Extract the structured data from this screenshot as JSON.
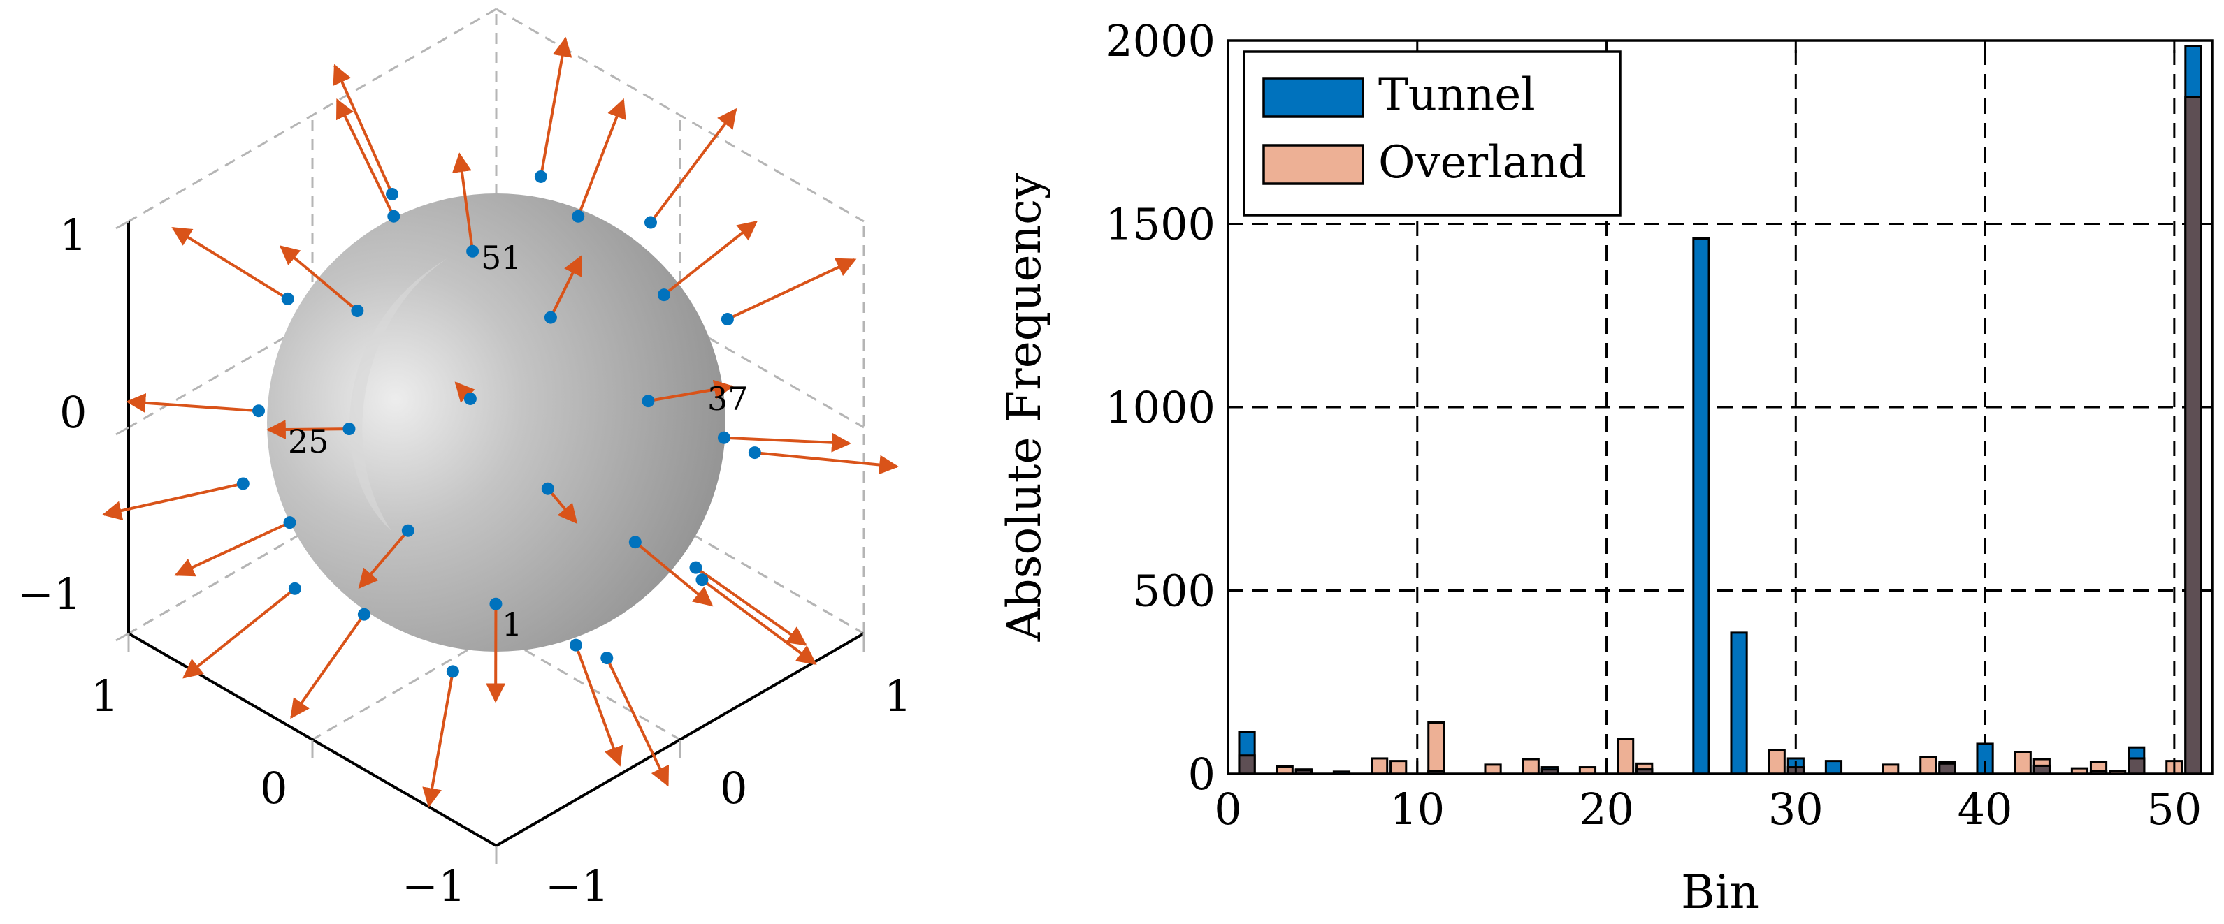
{
  "chart_data": [
    {
      "type": "scatter3d",
      "title": "",
      "description_labels": [
        "1",
        "25",
        "37",
        "51"
      ],
      "axes": {
        "x": {
          "range": [
            -1,
            1
          ],
          "ticks": [
            "−1",
            "0",
            "1"
          ]
        },
        "y": {
          "range": [
            -1,
            1
          ],
          "ticks": [
            "−1",
            "0",
            "1"
          ]
        },
        "z": {
          "range": [
            -1,
            1
          ],
          "ticks": [
            "−1",
            "0",
            "1"
          ]
        }
      },
      "grid": true,
      "surface": "unit sphere",
      "points_series": {
        "name": "points",
        "color": "#0072BD"
      },
      "vectors_series": {
        "name": "normals",
        "color": "#D95319"
      },
      "annotations": [
        {
          "text": "51",
          "anchor": "top"
        },
        {
          "text": "37",
          "anchor": "right"
        },
        {
          "text": "25",
          "anchor": "left"
        },
        {
          "text": "1",
          "anchor": "bottom"
        }
      ]
    },
    {
      "type": "bar",
      "title": "",
      "xlabel": "Bin",
      "ylabel": "Absolute Frequency",
      "xlim": [
        0,
        52
      ],
      "ylim": [
        0,
        2000
      ],
      "xticks": [
        "0",
        "10",
        "20",
        "30",
        "40",
        "50"
      ],
      "yticks": [
        "0",
        "500",
        "1000",
        "1500",
        "2000"
      ],
      "grid": true,
      "legend": {
        "position": "top-left"
      },
      "series": [
        {
          "name": "Tunnel",
          "color": "#0072BD",
          "points": [
            {
              "bin": 1,
              "value": 115
            },
            {
              "bin": 4,
              "value": 10
            },
            {
              "bin": 6,
              "value": 6
            },
            {
              "bin": 11,
              "value": 7
            },
            {
              "bin": 17,
              "value": 18
            },
            {
              "bin": 22,
              "value": 12
            },
            {
              "bin": 25,
              "value": 1460
            },
            {
              "bin": 27,
              "value": 385
            },
            {
              "bin": 30,
              "value": 42
            },
            {
              "bin": 32,
              "value": 35
            },
            {
              "bin": 38,
              "value": 28
            },
            {
              "bin": 40,
              "value": 82
            },
            {
              "bin": 43,
              "value": 22
            },
            {
              "bin": 46,
              "value": 8
            },
            {
              "bin": 48,
              "value": 72
            },
            {
              "bin": 51,
              "value": 1985
            }
          ]
        },
        {
          "name": "Overland",
          "color": "#EDB095",
          "points": [
            {
              "bin": 1,
              "value": 50
            },
            {
              "bin": 3,
              "value": 20
            },
            {
              "bin": 4,
              "value": 12
            },
            {
              "bin": 8,
              "value": 42
            },
            {
              "bin": 9,
              "value": 35
            },
            {
              "bin": 11,
              "value": 140
            },
            {
              "bin": 14,
              "value": 25
            },
            {
              "bin": 16,
              "value": 40
            },
            {
              "bin": 17,
              "value": 12
            },
            {
              "bin": 19,
              "value": 18
            },
            {
              "bin": 21,
              "value": 95
            },
            {
              "bin": 22,
              "value": 28
            },
            {
              "bin": 29,
              "value": 65
            },
            {
              "bin": 30,
              "value": 18
            },
            {
              "bin": 35,
              "value": 25
            },
            {
              "bin": 37,
              "value": 45
            },
            {
              "bin": 38,
              "value": 32
            },
            {
              "bin": 42,
              "value": 60
            },
            {
              "bin": 43,
              "value": 40
            },
            {
              "bin": 45,
              "value": 15
            },
            {
              "bin": 46,
              "value": 32
            },
            {
              "bin": 47,
              "value": 8
            },
            {
              "bin": 48,
              "value": 42
            },
            {
              "bin": 50,
              "value": 35
            },
            {
              "bin": 51,
              "value": 1845
            }
          ]
        }
      ]
    }
  ]
}
